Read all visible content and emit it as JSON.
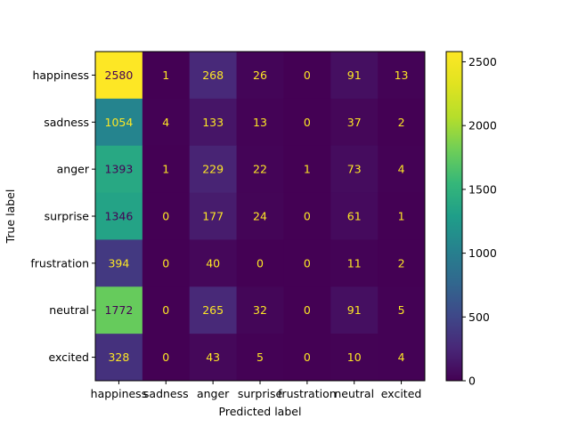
{
  "chart_data": {
    "type": "heatmap",
    "title": "",
    "xlabel": "Predicted label",
    "ylabel": "True label",
    "x_categories": [
      "happiness",
      "sadness",
      "anger",
      "surprise",
      "frustration",
      "neutral",
      "excited"
    ],
    "y_categories": [
      "happiness",
      "sadness",
      "anger",
      "surprise",
      "frustration",
      "neutral",
      "excited"
    ],
    "values": [
      [
        2580,
        1,
        268,
        26,
        0,
        91,
        13
      ],
      [
        1054,
        4,
        133,
        13,
        0,
        37,
        2
      ],
      [
        1393,
        1,
        229,
        22,
        1,
        73,
        4
      ],
      [
        1346,
        0,
        177,
        24,
        0,
        61,
        1
      ],
      [
        394,
        0,
        40,
        0,
        0,
        11,
        2
      ],
      [
        1772,
        0,
        265,
        32,
        0,
        91,
        5
      ],
      [
        328,
        0,
        43,
        5,
        0,
        10,
        4
      ]
    ],
    "colormap": "viridis",
    "colorbar": {
      "range": [
        0,
        2580
      ],
      "ticks": [
        0,
        500,
        1000,
        1500,
        2000,
        2500
      ],
      "tick_labels": [
        "0",
        "500",
        "1000",
        "1500",
        "2000",
        "2500"
      ]
    },
    "text_colors": {
      "dark_cells": "#fde725",
      "light_cells": "#440154"
    }
  }
}
